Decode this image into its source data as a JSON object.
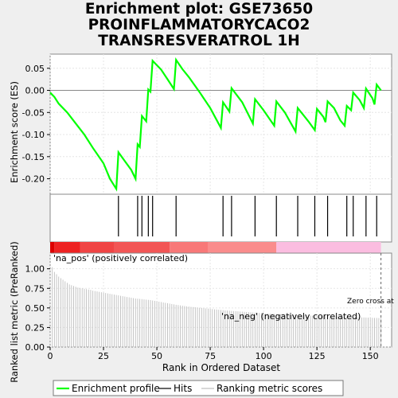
{
  "title": "Enrichment plot: GSE73650\nPROINFLAMMATORYCACO2\nTRANSRESVERATROL 1H",
  "colors": {
    "enrichment_line": "#00ff00",
    "hits": "#000000",
    "ranking_bars": "#bebebe",
    "pos_label": "#cc0000",
    "neg_label": "#0000cc"
  },
  "chart_data": [
    {
      "type": "line",
      "name": "enrichment-profile",
      "ylabel": "Enrichment score (ES)",
      "ylim": [
        -0.235,
        0.082
      ],
      "xlim": [
        0,
        160
      ],
      "y_ticks": [
        0.05,
        0.0,
        -0.05,
        -0.1,
        -0.15,
        -0.2
      ],
      "y_tick_labels": [
        "0.05",
        "0.00",
        "-0.05",
        "-0.10",
        "-0.15",
        "-0.20"
      ],
      "grid": true,
      "points": [
        [
          0,
          -0.005
        ],
        [
          2,
          -0.015
        ],
        [
          4,
          -0.03
        ],
        [
          8,
          -0.05
        ],
        [
          12,
          -0.075
        ],
        [
          16,
          -0.1
        ],
        [
          20,
          -0.13
        ],
        [
          25,
          -0.165
        ],
        [
          28,
          -0.2
        ],
        [
          31,
          -0.223
        ],
        [
          32,
          -0.14
        ],
        [
          35,
          -0.16
        ],
        [
          38,
          -0.18
        ],
        [
          40,
          -0.2
        ],
        [
          41,
          -0.122
        ],
        [
          42,
          -0.128
        ],
        [
          43,
          -0.058
        ],
        [
          45,
          -0.07
        ],
        [
          46,
          0.002
        ],
        [
          47,
          -0.003
        ],
        [
          48,
          0.067
        ],
        [
          52,
          0.047
        ],
        [
          55,
          0.025
        ],
        [
          58,
          0.003
        ],
        [
          59,
          0.069
        ],
        [
          62,
          0.048
        ],
        [
          65,
          0.03
        ],
        [
          70,
          -0.004
        ],
        [
          75,
          -0.04
        ],
        [
          80,
          -0.085
        ],
        [
          81,
          -0.027
        ],
        [
          84,
          -0.048
        ],
        [
          85,
          0.005
        ],
        [
          90,
          -0.027
        ],
        [
          95,
          -0.075
        ],
        [
          96,
          -0.02
        ],
        [
          100,
          -0.045
        ],
        [
          105,
          -0.08
        ],
        [
          106,
          -0.025
        ],
        [
          110,
          -0.05
        ],
        [
          115,
          -0.093
        ],
        [
          116,
          -0.04
        ],
        [
          121,
          -0.07
        ],
        [
          124,
          -0.09
        ],
        [
          125,
          -0.042
        ],
        [
          128,
          -0.06
        ],
        [
          129,
          -0.072
        ],
        [
          130,
          -0.025
        ],
        [
          133,
          -0.04
        ],
        [
          136,
          -0.068
        ],
        [
          138,
          -0.08
        ],
        [
          139,
          -0.035
        ],
        [
          141,
          -0.045
        ],
        [
          142,
          -0.005
        ],
        [
          145,
          -0.022
        ],
        [
          147,
          -0.04
        ],
        [
          148,
          0.004
        ],
        [
          151,
          -0.018
        ],
        [
          152,
          -0.032
        ],
        [
          153,
          0.013
        ],
        [
          155,
          0.0
        ]
      ]
    },
    {
      "type": "hits",
      "name": "hits",
      "xlim": [
        0,
        160
      ],
      "x": [
        32,
        41,
        43,
        46,
        48,
        59,
        81,
        85,
        96,
        106,
        116,
        124,
        130,
        139,
        142,
        148,
        153
      ]
    },
    {
      "type": "bar",
      "name": "ranking-metric",
      "ylabel": "Ranked list metric (PreRanked)",
      "xlabel": "Rank in Ordered Dataset",
      "xlim": [
        0,
        160
      ],
      "ylim": [
        0,
        1.2
      ],
      "x_ticks": [
        0,
        25,
        50,
        75,
        100,
        125,
        150
      ],
      "y_ticks": [
        0.0,
        0.25,
        0.5,
        0.75,
        1.0
      ],
      "y_tick_labels": [
        "0.00",
        "0.25",
        "0.50",
        "0.75",
        "1.00"
      ],
      "values": [
        1.02,
        0.96,
        0.93,
        0.9,
        0.88,
        0.86,
        0.84,
        0.82,
        0.8,
        0.79,
        0.78,
        0.77,
        0.76,
        0.755,
        0.75,
        0.745,
        0.74,
        0.735,
        0.73,
        0.72,
        0.715,
        0.71,
        0.705,
        0.7,
        0.695,
        0.69,
        0.685,
        0.68,
        0.675,
        0.67,
        0.665,
        0.66,
        0.655,
        0.65,
        0.645,
        0.64,
        0.635,
        0.63,
        0.625,
        0.62,
        0.618,
        0.615,
        0.612,
        0.609,
        0.606,
        0.603,
        0.6,
        0.595,
        0.59,
        0.585,
        0.58,
        0.575,
        0.57,
        0.565,
        0.56,
        0.555,
        0.55,
        0.545,
        0.54,
        0.536,
        0.532,
        0.528,
        0.524,
        0.52,
        0.517,
        0.514,
        0.511,
        0.508,
        0.505,
        0.502,
        0.5,
        0.497,
        0.494,
        0.491,
        0.488,
        0.485,
        0.482,
        0.48,
        0.477,
        0.474,
        0.471,
        0.468,
        0.466,
        0.464,
        0.462,
        0.46,
        0.458,
        0.456,
        0.454,
        0.452,
        0.45,
        0.448,
        0.446,
        0.444,
        0.442,
        0.44,
        0.438,
        0.436,
        0.434,
        0.432,
        0.43,
        0.428,
        0.426,
        0.424,
        0.422,
        0.42,
        0.418,
        0.417,
        0.416,
        0.415,
        0.414,
        0.413,
        0.412,
        0.411,
        0.41,
        0.409,
        0.408,
        0.407,
        0.406,
        0.405,
        0.404,
        0.403,
        0.402,
        0.401,
        0.4,
        0.399,
        0.398,
        0.397,
        0.396,
        0.395,
        0.394,
        0.393,
        0.392,
        0.391,
        0.39,
        0.389,
        0.388,
        0.387,
        0.386,
        0.385,
        0.384,
        0.383,
        0.382,
        0.381,
        0.38,
        0.379,
        0.378,
        0.377,
        0.376,
        0.375,
        0.374,
        0.373,
        0.372,
        0.371,
        0.37
      ],
      "pos_label": "'na_pos' (positively correlated)",
      "neg_label": "'na_neg' (negatively correlated)",
      "zero_cross_label": "Zero cross at",
      "zero_cross": 155
    }
  ],
  "color_bar": [
    {
      "from": 0,
      "to": 2,
      "color": "#dd0000"
    },
    {
      "from": 2,
      "to": 14,
      "color": "#ee2222"
    },
    {
      "from": 14,
      "to": 30,
      "color": "#f04444"
    },
    {
      "from": 30,
      "to": 56,
      "color": "#f25555"
    },
    {
      "from": 56,
      "to": 74,
      "color": "#f87878"
    },
    {
      "from": 74,
      "to": 106,
      "color": "#fa8c8c"
    },
    {
      "from": 106,
      "to": 155,
      "color": "#fbbde0"
    }
  ],
  "legend": {
    "items": [
      {
        "label": "Enrichment profile",
        "color": "#00ff00",
        "kind": "line"
      },
      {
        "label": "Hits",
        "color": "#000000",
        "kind": "line"
      },
      {
        "label": "Ranking metric scores",
        "color": "#bebebe",
        "kind": "line"
      }
    ]
  }
}
